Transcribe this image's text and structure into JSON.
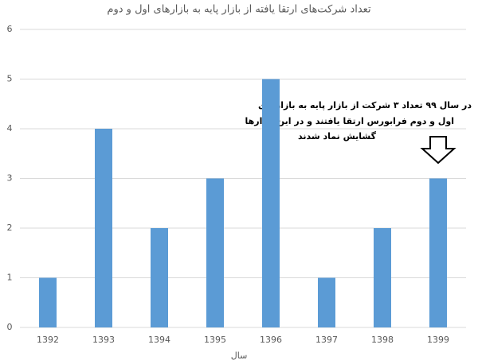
{
  "chart_data": {
    "type": "bar",
    "title": "تعداد شرکت‌های ارتقا یافته از بازار پایه به بازارهای اول و دوم",
    "x_label": "سال",
    "categories": [
      "1392",
      "1393",
      "1394",
      "1395",
      "1396",
      "1397",
      "1398",
      "1399"
    ],
    "values": [
      1,
      4,
      2,
      3,
      5,
      1,
      2,
      3
    ],
    "color": "#5b9bd5",
    "ylim": [
      0,
      6
    ],
    "yticks": [
      0,
      1,
      2,
      3,
      4,
      5,
      6
    ],
    "grid": true,
    "annotation": [
      "در سال ۹۹ تعداد ۳ شرکت از بازار پایه به بازارهای",
      "اول و دوم فرابورس ارتقا یافتند و در این بازارها",
      "گشایش نماد شدند"
    ]
  }
}
